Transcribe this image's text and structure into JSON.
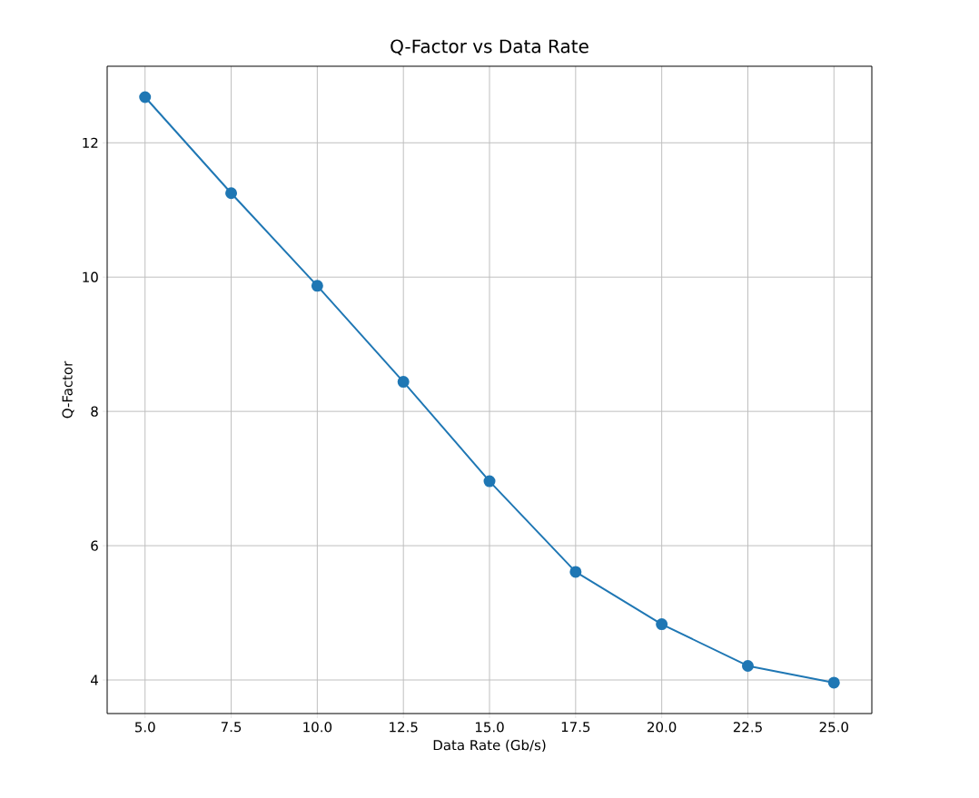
{
  "chart_data": {
    "type": "line",
    "title": "Q-Factor vs Data Rate",
    "xlabel": "Data Rate (Gb/s)",
    "ylabel": "Q-Factor",
    "x": [
      5,
      7.5,
      10,
      12.5,
      15,
      17.5,
      20,
      22.5,
      25
    ],
    "series": [
      {
        "color": "#1f77b4",
        "values": [
          12.68,
          11.25,
          9.87,
          8.44,
          6.96,
          5.61,
          4.83,
          4.21,
          3.96
        ]
      }
    ],
    "xlim": [
      3.9,
      26.1
    ],
    "ylim": [
      3.5,
      13.14
    ],
    "xticks": [
      {
        "value": 5,
        "label": "5.0"
      },
      {
        "value": 7.5,
        "label": "7.5"
      },
      {
        "value": 10,
        "label": "10.0"
      },
      {
        "value": 12.5,
        "label": "12.5"
      },
      {
        "value": 15,
        "label": "15.0"
      },
      {
        "value": 17.5,
        "label": "17.5"
      },
      {
        "value": 20,
        "label": "20.0"
      },
      {
        "value": 22.5,
        "label": "22.5"
      },
      {
        "value": 25,
        "label": "25.0"
      }
    ],
    "yticks": [
      4,
      6,
      8,
      10,
      12
    ],
    "grid": true,
    "marker": "circle",
    "line_style": "solid"
  }
}
